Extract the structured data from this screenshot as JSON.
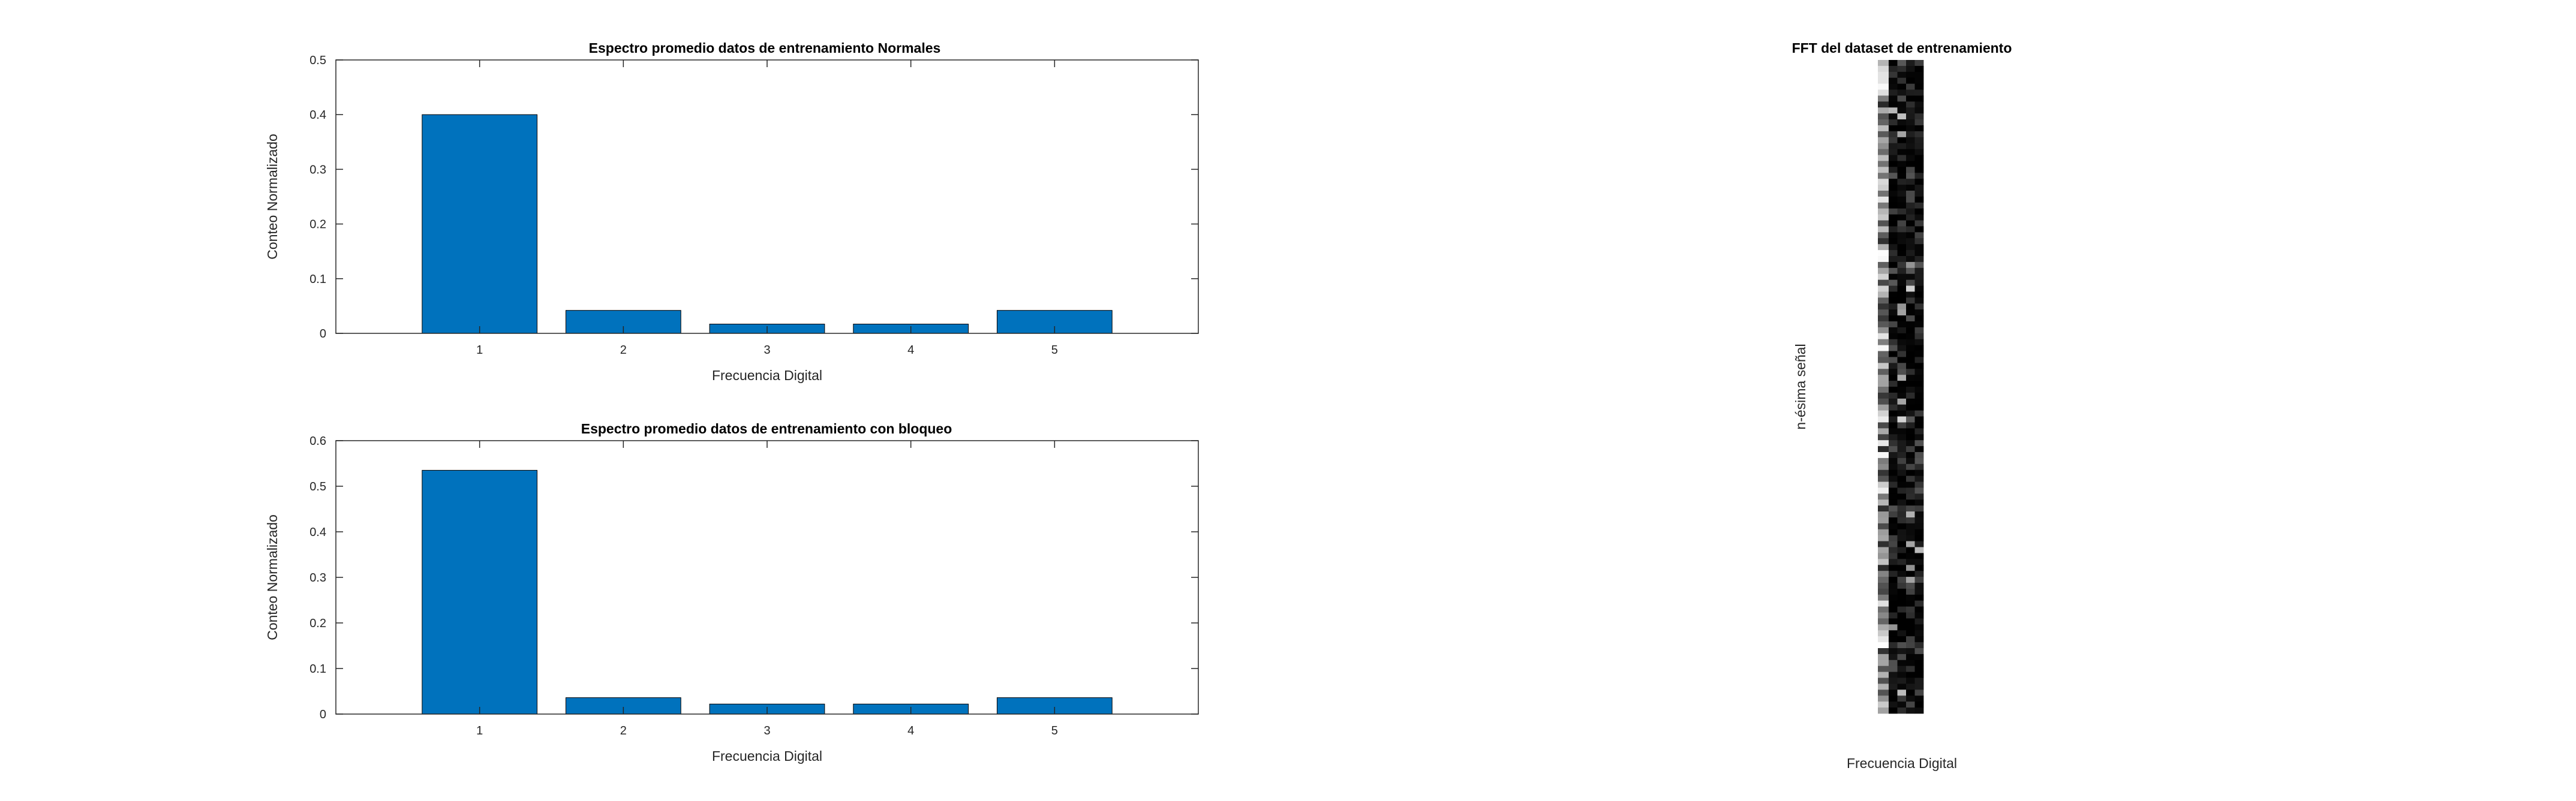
{
  "chart_data": [
    {
      "type": "bar",
      "title": "Espectro promedio datos de entrenamiento Normales",
      "xlabel": "Frecuencia Digital",
      "ylabel": "Conteo Normalizado",
      "categories": [
        "1",
        "2",
        "3",
        "4",
        "5"
      ],
      "values": [
        0.4,
        0.042,
        0.017,
        0.017,
        0.042
      ],
      "ylim": [
        0,
        0.5
      ],
      "yticks": [
        "0",
        "0.1",
        "0.2",
        "0.3",
        "0.4",
        "0.5"
      ],
      "bar_color": "#0072BD",
      "grid": false
    },
    {
      "type": "bar",
      "title": "Espectro promedio datos de entrenamiento con bloqueo",
      "xlabel": "Frecuencia Digital",
      "ylabel": "Conteo Normalizado",
      "categories": [
        "1",
        "2",
        "3",
        "4",
        "5"
      ],
      "values": [
        0.535,
        0.036,
        0.022,
        0.022,
        0.036
      ],
      "ylim": [
        0,
        0.6
      ],
      "yticks": [
        "0",
        "0.1",
        "0.2",
        "0.3",
        "0.4",
        "0.5",
        "0.6"
      ],
      "bar_color": "#0072BD",
      "grid": false
    },
    {
      "type": "heatmap",
      "title": "FFT del dataset de entrenamiento",
      "xlabel": "Frecuencia Digital",
      "ylabel": "n-ésima señal",
      "colormap": "gray",
      "columns": 5,
      "rows": 110
    }
  ]
}
